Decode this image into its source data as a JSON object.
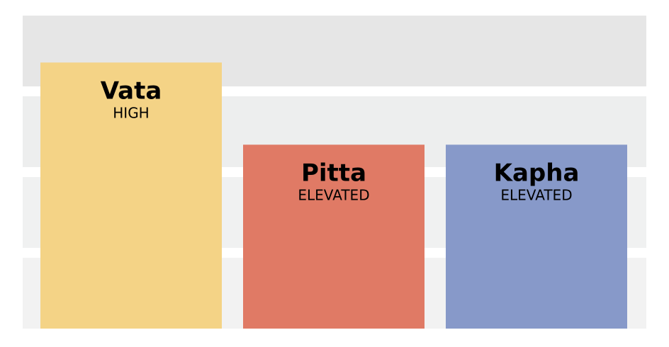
{
  "chart_data": {
    "type": "bar",
    "categories": [
      "Vata",
      "Pitta",
      "Kapha"
    ],
    "values": [
      3.4,
      2.35,
      2.35
    ],
    "status_labels": [
      "HIGH",
      "ELEVATED",
      "ELEVATED"
    ],
    "colors": [
      "#f4d386",
      "#e07a65",
      "#8799c9"
    ],
    "ylim": [
      0,
      4
    ],
    "grid_band_colors": [
      "#f2f2f2",
      "#f0f1f1",
      "#edeeee",
      "#e6e6e6"
    ],
    "title": "",
    "xlabel": "",
    "ylabel": ""
  }
}
